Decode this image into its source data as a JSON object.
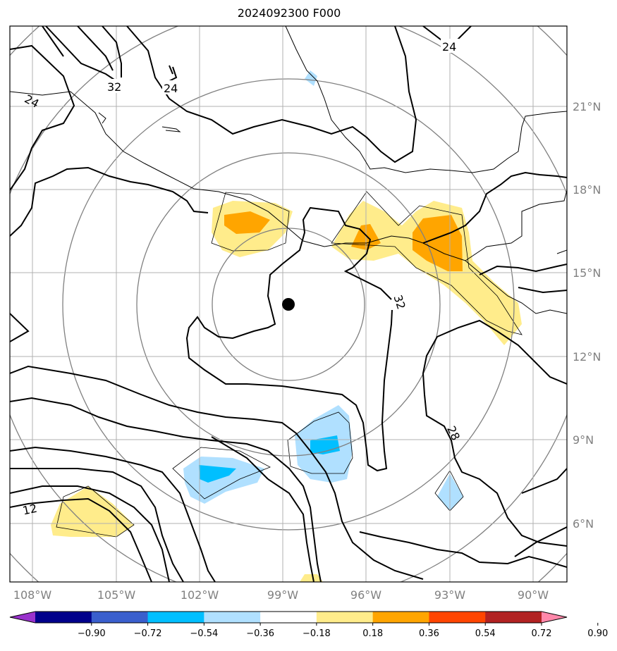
{
  "title": "2024092300 F000",
  "map": {
    "lon_labels": [
      "108°W",
      "105°W",
      "102°W",
      "99°W",
      "96°W",
      "93°W",
      "90°W"
    ],
    "lat_labels": [
      "21°N",
      "18°N",
      "15°N",
      "12°N",
      "9°N",
      "6°N"
    ],
    "storm_center": {
      "lon": -98.9,
      "lat": 13.8
    },
    "contour_labels": [
      "24",
      "32",
      "24",
      "24",
      "32",
      "28",
      "12"
    ],
    "grid": true,
    "range_rings": 5
  },
  "colorbar": {
    "ticks": [
      "−0.90",
      "−0.72",
      "−0.54",
      "−0.36",
      "−0.18",
      "0.18",
      "0.36",
      "0.54",
      "0.72",
      "0.90"
    ],
    "colors": [
      "#9932cc",
      "#00008b",
      "#3a5fcd",
      "#00bfff",
      "#b0e0ff",
      "#ffffff",
      "#ffec8b",
      "#ffa500",
      "#ff4500",
      "#b22222",
      "#ff88aa"
    ]
  }
}
